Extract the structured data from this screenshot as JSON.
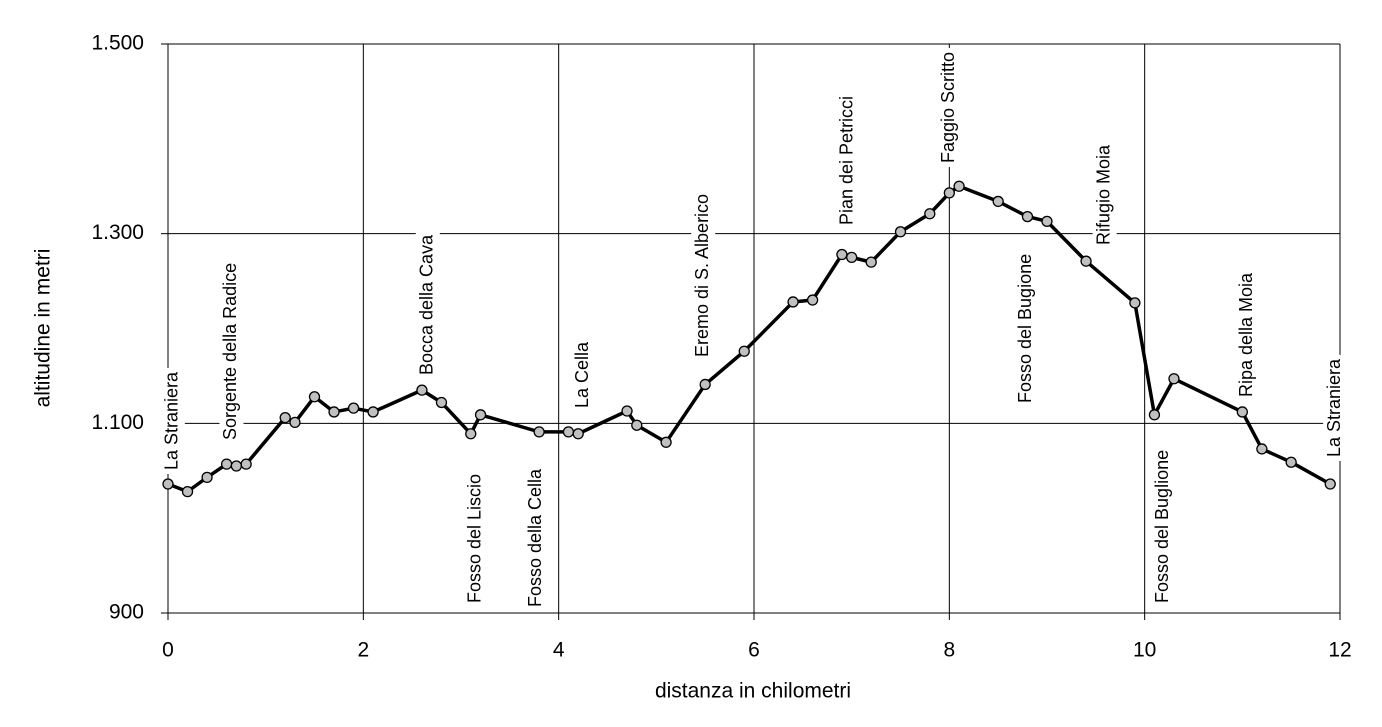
{
  "chart_data": {
    "type": "line",
    "x_label": "distanza in chilometri",
    "y_label": "altitudine  in metri",
    "x": [
      0,
      0.2,
      0.4,
      0.6,
      0.7,
      0.8,
      1.2,
      1.3,
      1.5,
      1.7,
      1.9,
      2.1,
      2.6,
      2.8,
      3.1,
      3.2,
      3.8,
      4.1,
      4.2,
      4.7,
      4.8,
      5.1,
      5.5,
      5.9,
      6.4,
      6.6,
      6.9,
      7.0,
      7.2,
      7.5,
      7.8,
      8.0,
      8.1,
      8.5,
      8.8,
      9.0,
      9.4,
      9.9,
      10.1,
      10.3,
      11.0,
      11.2,
      11.5,
      11.9
    ],
    "series": [
      {
        "color": "#000000",
        "marker_color": "#c0c0c0",
        "values": [
          1036,
          1028,
          1043,
          1057,
          1055,
          1057,
          1106,
          1101,
          1128,
          1112,
          1116,
          1112,
          1135,
          1122,
          1089,
          1109,
          1091,
          1091,
          1089,
          1113,
          1098,
          1080,
          1141,
          1176,
          1228,
          1230,
          1278,
          1275,
          1270,
          1302,
          1321,
          1343,
          1350,
          1334,
          1318,
          1313,
          1271,
          1227,
          1109,
          1147,
          1112,
          1073,
          1059,
          1036
        ]
      }
    ],
    "xlim": [
      0,
      12
    ],
    "xticks": [
      0,
      2,
      4,
      6,
      8,
      10,
      12
    ],
    "ylim": [
      900,
      1500
    ],
    "yticks": [
      900,
      {
        "value": 1100,
        "label": "1.100"
      },
      {
        "value": 1300,
        "label": "1.300"
      },
      {
        "value": 1500,
        "label": "1.500"
      }
    ],
    "grid": true,
    "annotations": [
      {
        "text": "La Straniera",
        "x": 0.05
      },
      {
        "text": "Sorgente della Radice",
        "x": 0.65
      },
      {
        "text": "Bocca della Cava",
        "x": 2.66
      },
      {
        "text": "Fosso del Liscio",
        "x": 3.15
      },
      {
        "text": "Fosso della Cella",
        "x": 3.77
      },
      {
        "text": "La Cella",
        "x": 4.25
      },
      {
        "text": "Eremo di S. Alberico",
        "x": 5.48
      },
      {
        "text": "Pian dei Petricci",
        "x": 6.96
      },
      {
        "text": "Faggio Scritto",
        "x": 8.0
      },
      {
        "text": "Fosso del Bugione",
        "x": 8.79
      },
      {
        "text": "Rifugio Moia",
        "x": 9.59
      },
      {
        "text": "Fosso del Buglione",
        "x": 10.19
      },
      {
        "text": "Ripa della Moia",
        "x": 11.05
      },
      {
        "text": "La Straniera",
        "x": 11.95
      }
    ]
  }
}
